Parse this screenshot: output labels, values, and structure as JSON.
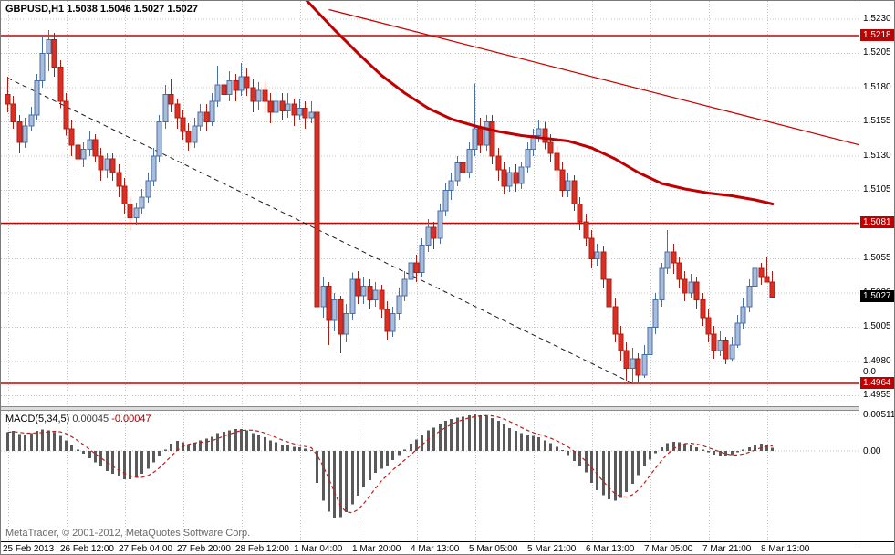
{
  "header": {
    "label": "GBPUSD,H1 1.5038 1.5046 1.5027 1.5027"
  },
  "macd": {
    "name": "MACD(5,34,5)",
    "value_main": "0.00045",
    "value_signal": "-0.00047"
  },
  "footer": {
    "copyright": "MetaTrader, © 2001-2012, MetaQuotes Software Corp."
  },
  "price_axis": {
    "labels": [
      "1.5230",
      "1.5205",
      "1.5180",
      "1.5155",
      "1.5130",
      "1.5105",
      "1.5055",
      "1.5030",
      "1.5005",
      "1.4980",
      "1.4955"
    ],
    "tags": [
      {
        "text": "1.5218",
        "price": 1.5218,
        "style": "red"
      },
      {
        "text": "1.5081",
        "price": 1.5081,
        "style": "red"
      },
      {
        "text": "1.4964",
        "price": 1.4964,
        "style": "red"
      },
      {
        "text": "1.5027",
        "price": 1.5027,
        "style": "black"
      }
    ],
    "extra_label": {
      "text": "0.0",
      "price": 1.4972
    }
  },
  "macd_axis": [
    {
      "text": "0.00511",
      "value": 0.00511
    },
    {
      "text": "0.00",
      "value": 0
    }
  ],
  "colors": {
    "bull_fill": "#aabdd8",
    "bull_stroke": "#4a6ea8",
    "bear_fill": "#dc2f23",
    "bear_stroke": "#a81d14",
    "line_red": "#cc0000",
    "ma_red": "#c00000",
    "trend_dash": "#1a1a1a",
    "hist": "#5a5a5a",
    "signal": "#c11a1a",
    "grid": "#c6c6c6",
    "tag_red_bg": "#c00000",
    "tag_black_bg": "#000000",
    "axis_text": "#000000"
  },
  "chart_data": {
    "type": "candlestick",
    "symbol": "GBPUSD",
    "timeframe": "H1",
    "title": "GBPUSD,H1",
    "current_ohlc": {
      "open": 1.5038,
      "high": 1.5046,
      "low": 1.5027,
      "close": 1.5027
    },
    "price_range": [
      1.4955,
      1.523
    ],
    "grid_step": 0.0025,
    "horizontal_levels": [
      1.5218,
      1.5081,
      1.4964
    ],
    "current_price": 1.5027,
    "time_ticks": {
      "step": 10,
      "labels": [
        "25 Feb 2013",
        "26 Feb 12:00",
        "27 Feb 04:00",
        "27 Feb 20:00",
        "28 Feb 12:00",
        "1 Mar 04:00",
        "1 Mar 20:00",
        "4 Mar 13:00",
        "5 Mar 05:00",
        "5 Mar 21:00",
        "6 Mar 13:00",
        "7 Mar 05:00",
        "7 Mar 21:00",
        "8 Mar 13:00"
      ]
    },
    "candles_ohlc": [
      [
        1.5175,
        1.5188,
        1.5162,
        1.5168
      ],
      [
        1.5168,
        1.5174,
        1.515,
        1.5155
      ],
      [
        1.5155,
        1.516,
        1.5132,
        1.514
      ],
      [
        1.514,
        1.5158,
        1.5136,
        1.5152
      ],
      [
        1.5152,
        1.5166,
        1.5148,
        1.516
      ],
      [
        1.516,
        1.519,
        1.5156,
        1.5185
      ],
      [
        1.5185,
        1.5218,
        1.518,
        1.5205
      ],
      [
        1.5205,
        1.5222,
        1.5192,
        1.5215
      ],
      [
        1.5215,
        1.522,
        1.5188,
        1.5195
      ],
      [
        1.5195,
        1.52,
        1.5165,
        1.517
      ],
      [
        1.517,
        1.5176,
        1.5145,
        1.515
      ],
      [
        1.515,
        1.5156,
        1.513,
        1.5138
      ],
      [
        1.5138,
        1.5144,
        1.512,
        1.5128
      ],
      [
        1.5128,
        1.514,
        1.5122,
        1.5135
      ],
      [
        1.5135,
        1.5148,
        1.513,
        1.5142
      ],
      [
        1.5142,
        1.5146,
        1.5126,
        1.513
      ],
      [
        1.513,
        1.5136,
        1.5112,
        1.512
      ],
      [
        1.512,
        1.5132,
        1.5114,
        1.5128
      ],
      [
        1.5128,
        1.5132,
        1.5112,
        1.5118
      ],
      [
        1.5118,
        1.5124,
        1.51,
        1.5108
      ],
      [
        1.5108,
        1.5114,
        1.5088,
        1.5095
      ],
      [
        1.5095,
        1.51,
        1.5076,
        1.5085
      ],
      [
        1.5085,
        1.5096,
        1.508,
        1.5092
      ],
      [
        1.5092,
        1.5106,
        1.5088,
        1.51
      ],
      [
        1.51,
        1.5118,
        1.5096,
        1.5112
      ],
      [
        1.5112,
        1.5136,
        1.5108,
        1.513
      ],
      [
        1.513,
        1.516,
        1.5126,
        1.5155
      ],
      [
        1.5155,
        1.5182,
        1.515,
        1.5175
      ],
      [
        1.5175,
        1.5186,
        1.5162,
        1.5168
      ],
      [
        1.5168,
        1.5172,
        1.515,
        1.5158
      ],
      [
        1.5158,
        1.5164,
        1.5142,
        1.5148
      ],
      [
        1.5148,
        1.5154,
        1.5134,
        1.514
      ],
      [
        1.514,
        1.5158,
        1.5136,
        1.5152
      ],
      [
        1.5152,
        1.5168,
        1.5148,
        1.5162
      ],
      [
        1.5162,
        1.5168,
        1.5148,
        1.5155
      ],
      [
        1.5155,
        1.5176,
        1.5152,
        1.517
      ],
      [
        1.517,
        1.5196,
        1.5166,
        1.5182
      ],
      [
        1.5182,
        1.5188,
        1.5168,
        1.5175
      ],
      [
        1.5175,
        1.5192,
        1.517,
        1.5185
      ],
      [
        1.5185,
        1.519,
        1.517,
        1.5178
      ],
      [
        1.5178,
        1.5198,
        1.5174,
        1.5188
      ],
      [
        1.5188,
        1.5194,
        1.5174,
        1.518
      ],
      [
        1.518,
        1.5186,
        1.5162,
        1.517
      ],
      [
        1.517,
        1.5184,
        1.5164,
        1.5178
      ],
      [
        1.5178,
        1.5184,
        1.5162,
        1.517
      ],
      [
        1.517,
        1.5176,
        1.5154,
        1.5162
      ],
      [
        1.5162,
        1.5178,
        1.5158,
        1.517
      ],
      [
        1.517,
        1.5176,
        1.5156,
        1.5163
      ],
      [
        1.5163,
        1.5176,
        1.5158,
        1.5168
      ],
      [
        1.5168,
        1.5172,
        1.5152,
        1.516
      ],
      [
        1.516,
        1.5172,
        1.5156,
        1.5165
      ],
      [
        1.5165,
        1.517,
        1.515,
        1.5158
      ],
      [
        1.5158,
        1.517,
        1.5154,
        1.5162
      ],
      [
        1.5162,
        1.5165,
        1.5008,
        1.502
      ],
      [
        1.502,
        1.5042,
        1.5012,
        1.5035
      ],
      [
        1.5035,
        1.5038,
        1.4992,
        1.501
      ],
      [
        1.501,
        1.503,
        1.5002,
        1.5025
      ],
      [
        1.5025,
        1.5028,
        1.4986,
        1.5
      ],
      [
        1.5,
        1.5022,
        1.4994,
        1.5015
      ],
      [
        1.5015,
        1.5045,
        1.501,
        1.504
      ],
      [
        1.504,
        1.5046,
        1.5022,
        1.5028
      ],
      [
        1.5028,
        1.5042,
        1.5022,
        1.5035
      ],
      [
        1.5035,
        1.504,
        1.5018,
        1.5025
      ],
      [
        1.5025,
        1.5038,
        1.502,
        1.5032
      ],
      [
        1.5032,
        1.5036,
        1.5012,
        1.5018
      ],
      [
        1.5018,
        1.5024,
        1.4996,
        1.5002
      ],
      [
        1.5002,
        1.502,
        1.4998,
        1.5015
      ],
      [
        1.5015,
        1.5034,
        1.501,
        1.5028
      ],
      [
        1.5028,
        1.5046,
        1.5024,
        1.504
      ],
      [
        1.504,
        1.5058,
        1.5036,
        1.5052
      ],
      [
        1.5052,
        1.5058,
        1.5038,
        1.5045
      ],
      [
        1.5045,
        1.507,
        1.5042,
        1.5065
      ],
      [
        1.5065,
        1.5084,
        1.506,
        1.5078
      ],
      [
        1.5078,
        1.5082,
        1.5062,
        1.507
      ],
      [
        1.507,
        1.5095,
        1.5066,
        1.509
      ],
      [
        1.509,
        1.511,
        1.5086,
        1.5105
      ],
      [
        1.5105,
        1.5118,
        1.5098,
        1.5112
      ],
      [
        1.5112,
        1.513,
        1.5108,
        1.5125
      ],
      [
        1.5125,
        1.513,
        1.511,
        1.5118
      ],
      [
        1.5118,
        1.514,
        1.5114,
        1.5135
      ],
      [
        1.5135,
        1.5183,
        1.513,
        1.515
      ],
      [
        1.515,
        1.5158,
        1.5132,
        1.5138
      ],
      [
        1.5138,
        1.516,
        1.5134,
        1.5155
      ],
      [
        1.5155,
        1.516,
        1.5124,
        1.513
      ],
      [
        1.513,
        1.5136,
        1.5112,
        1.512
      ],
      [
        1.512,
        1.5126,
        1.5102,
        1.5108
      ],
      [
        1.5108,
        1.5122,
        1.5104,
        1.5118
      ],
      [
        1.5118,
        1.5124,
        1.5104,
        1.511
      ],
      [
        1.511,
        1.5126,
        1.5106,
        1.5122
      ],
      [
        1.5122,
        1.514,
        1.5118,
        1.5135
      ],
      [
        1.5135,
        1.515,
        1.513,
        1.5145
      ],
      [
        1.5145,
        1.5156,
        1.514,
        1.515
      ],
      [
        1.515,
        1.5155,
        1.5135,
        1.514
      ],
      [
        1.514,
        1.5146,
        1.5126,
        1.5132
      ],
      [
        1.5132,
        1.5138,
        1.5114,
        1.512
      ],
      [
        1.512,
        1.5126,
        1.51,
        1.5105
      ],
      [
        1.5105,
        1.5118,
        1.51,
        1.5112
      ],
      [
        1.5112,
        1.5116,
        1.509,
        1.5095
      ],
      [
        1.5095,
        1.51,
        1.5076,
        1.5082
      ],
      [
        1.5082,
        1.5088,
        1.5064,
        1.507
      ],
      [
        1.507,
        1.5076,
        1.5048,
        1.5055
      ],
      [
        1.5055,
        1.5066,
        1.505,
        1.506
      ],
      [
        1.506,
        1.5064,
        1.5034,
        1.504
      ],
      [
        1.504,
        1.5046,
        1.5014,
        1.502
      ],
      [
        1.502,
        1.5026,
        1.4994,
        1.5
      ],
      [
        1.5,
        1.5006,
        1.498,
        1.4988
      ],
      [
        1.4988,
        1.4994,
        1.4966,
        1.4975
      ],
      [
        1.4975,
        1.499,
        1.4964,
        1.4982
      ],
      [
        1.4982,
        1.4986,
        1.4965,
        1.497
      ],
      [
        1.497,
        1.4992,
        1.4968,
        1.4985
      ],
      [
        1.4985,
        1.501,
        1.4982,
        1.5005
      ],
      [
        1.5005,
        1.503,
        1.5,
        1.5025
      ],
      [
        1.5025,
        1.5052,
        1.502,
        1.5048
      ],
      [
        1.5048,
        1.5076,
        1.5044,
        1.506
      ],
      [
        1.506,
        1.5066,
        1.5044,
        1.5052
      ],
      [
        1.5052,
        1.5056,
        1.5034,
        1.504
      ],
      [
        1.504,
        1.5046,
        1.5024,
        1.503
      ],
      [
        1.503,
        1.5044,
        1.5026,
        1.5038
      ],
      [
        1.5038,
        1.5042,
        1.5018,
        1.5025
      ],
      [
        1.5025,
        1.503,
        1.5006,
        1.5012
      ],
      [
        1.5012,
        1.5018,
        1.4994,
        1.5
      ],
      [
        1.5,
        1.5006,
        1.4982,
        1.4988
      ],
      [
        1.4988,
        1.5002,
        1.4984,
        1.4995
      ],
      [
        1.4995,
        1.4998,
        1.4978,
        1.4982
      ],
      [
        1.4982,
        1.4998,
        1.498,
        1.4992
      ],
      [
        1.4992,
        1.5014,
        1.499,
        1.5008
      ],
      [
        1.5008,
        1.5026,
        1.5004,
        1.502
      ],
      [
        1.502,
        1.504,
        1.5016,
        1.5035
      ],
      [
        1.5035,
        1.5054,
        1.5032,
        1.5048
      ],
      [
        1.5048,
        1.5052,
        1.5036,
        1.5042
      ],
      [
        1.5042,
        1.5056,
        1.5038,
        1.5038
      ],
      [
        1.5038,
        1.5046,
        1.5027,
        1.5027
      ]
    ],
    "overlays": {
      "ma_thick_red": [
        [
          48,
          1.5258
        ],
        [
          52,
          1.524
        ],
        [
          56,
          1.5222
        ],
        [
          60,
          1.5205
        ],
        [
          64,
          1.5189
        ],
        [
          68,
          1.5176
        ],
        [
          72,
          1.5165
        ],
        [
          76,
          1.5157
        ],
        [
          80,
          1.5152
        ],
        [
          84,
          1.5148
        ],
        [
          88,
          1.5145
        ],
        [
          92,
          1.5143
        ],
        [
          96,
          1.5141
        ],
        [
          100,
          1.5136
        ],
        [
          104,
          1.5128
        ],
        [
          108,
          1.5118
        ],
        [
          112,
          1.511
        ],
        [
          116,
          1.5106
        ],
        [
          120,
          1.5103
        ],
        [
          124,
          1.5101
        ],
        [
          128,
          1.5098
        ],
        [
          131,
          1.5095
        ]
      ],
      "trendline_red": [
        [
          55,
          1.5237
        ],
        [
          146,
          1.5138
        ]
      ],
      "trendline_black_dashed": [
        [
          0,
          1.5187
        ],
        [
          107,
          1.4964
        ]
      ]
    },
    "indicator": {
      "name": "MACD(5,34,5)",
      "histogram_last": 0.00045,
      "signal_last": -0.00047,
      "ylim": [
        -0.0095,
        0.00511
      ],
      "histogram": [
        0.0026,
        0.0028,
        0.0024,
        0.0022,
        0.0025,
        0.0028,
        0.003,
        0.0029,
        0.0026,
        0.0021,
        0.0015,
        0.0008,
        0.0002,
        -0.0004,
        -0.001,
        -0.0016,
        -0.0022,
        -0.0028,
        -0.0032,
        -0.0036,
        -0.004,
        -0.004,
        -0.0037,
        -0.0032,
        -0.0025,
        -0.0016,
        -0.0007,
        0.0002,
        0.001,
        0.0014,
        0.0012,
        0.0009,
        0.0011,
        0.0015,
        0.0017,
        0.002,
        0.0025,
        0.0027,
        0.0029,
        0.0031,
        0.0031,
        0.0029,
        0.0025,
        0.0022,
        0.0019,
        0.0015,
        0.0012,
        0.0009,
        0.0008,
        0.0006,
        0.0005,
        0.0003,
        0.0001,
        -0.0045,
        -0.007,
        -0.0085,
        -0.0095,
        -0.0093,
        -0.0086,
        -0.0075,
        -0.0063,
        -0.0051,
        -0.0041,
        -0.0031,
        -0.0025,
        -0.0021,
        -0.0013,
        -0.0006,
        0.0002,
        0.001,
        0.0016,
        0.0023,
        0.0029,
        0.0033,
        0.0038,
        0.0042,
        0.0045,
        0.0047,
        0.0048,
        0.005,
        0.0051,
        0.005,
        0.0049,
        0.0046,
        0.0042,
        0.0037,
        0.0032,
        0.0028,
        0.0025,
        0.0023,
        0.0021,
        0.0019,
        0.0015,
        0.0011,
        0.0006,
        0.0001,
        -0.0006,
        -0.0014,
        -0.0022,
        -0.003,
        -0.0045,
        -0.0055,
        -0.0062,
        -0.0068,
        -0.007,
        -0.0066,
        -0.0058,
        -0.0046,
        -0.0034,
        -0.0022,
        -0.0012,
        -0.0003,
        0.0005,
        0.0011,
        0.0013,
        0.0012,
        0.001,
        0.0008,
        0.0005,
        0.0002,
        -0.0002,
        -0.0005,
        -0.0007,
        -0.0008,
        -0.0006,
        -0.0002,
        0.0002,
        0.0005,
        0.0008,
        0.001,
        0.0008,
        0.00045
      ]
    }
  }
}
